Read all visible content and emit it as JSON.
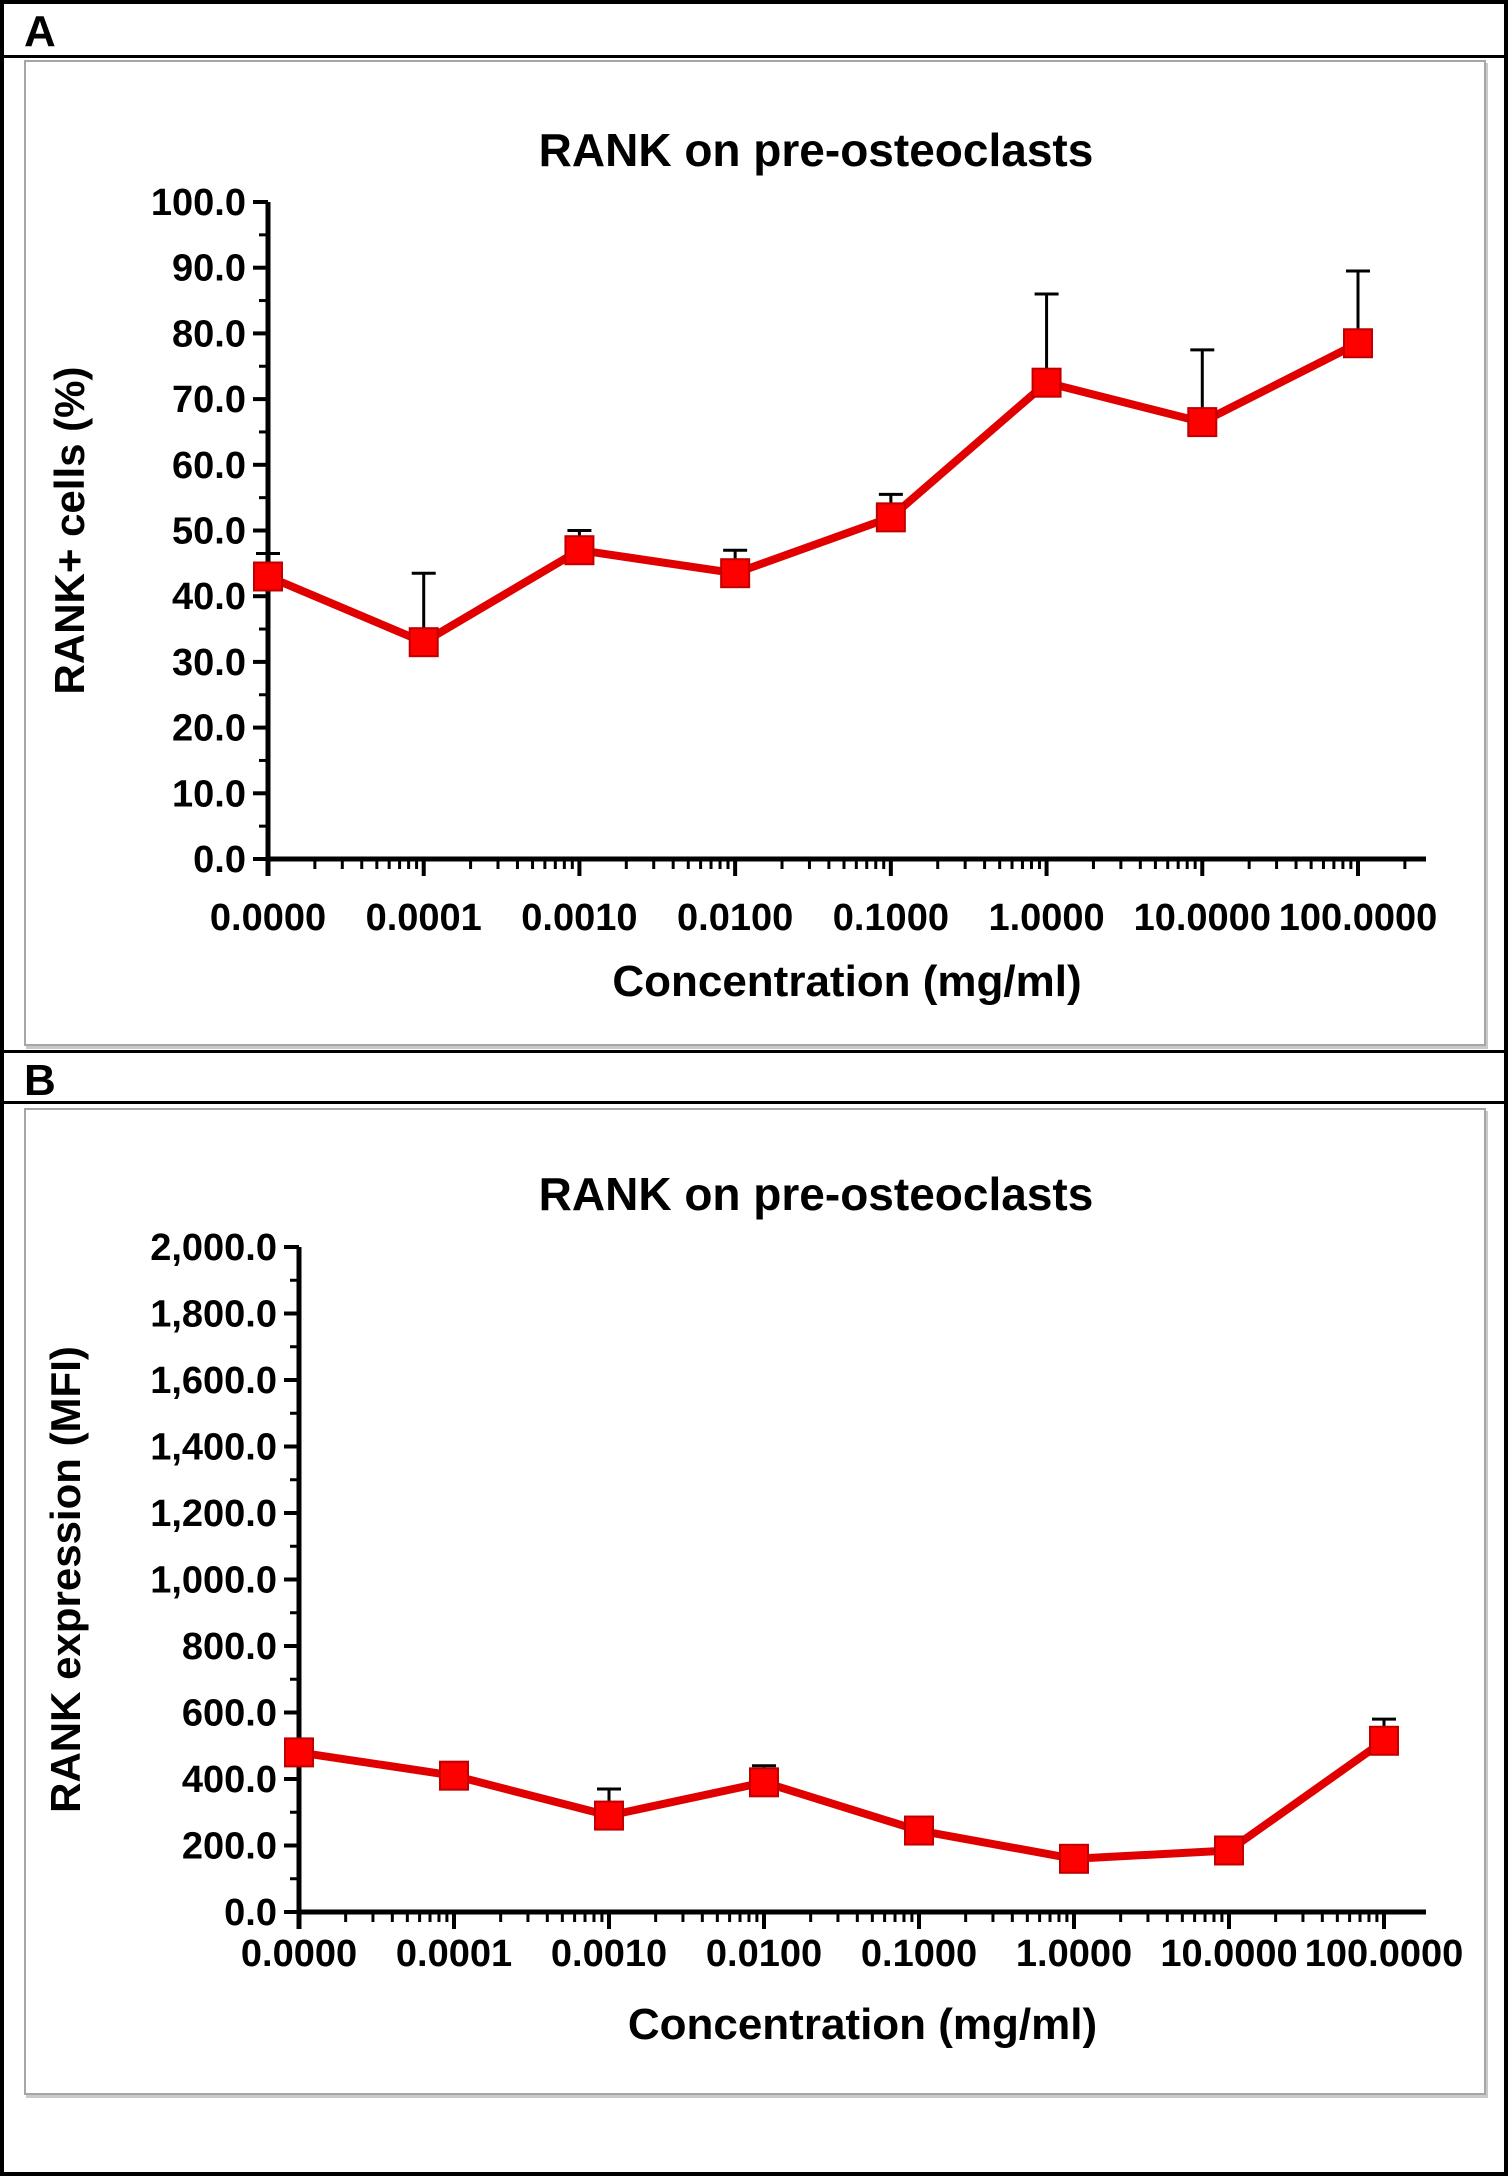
{
  "figure": {
    "panel_a_label": "A",
    "panel_b_label": "B"
  },
  "colors": {
    "line": "#e00000",
    "marker_fill": "#ff0000",
    "marker_edge": "#c00000",
    "error_bar": "#000000",
    "axis": "#000000",
    "text": "#000000",
    "panel_border": "#a6a6a6"
  },
  "chart_data": [
    {
      "id": "panelA",
      "type": "line",
      "title": "RANK on pre-osteoclasts",
      "xlabel": "Concentration (mg/ml)",
      "ylabel": "RANK+ cells (%)",
      "x_scale_note": "log-style category axis with decade minor ticks",
      "categories": [
        "0.0000",
        "0.0001",
        "0.0010",
        "0.0100",
        "0.1000",
        "1.0000",
        "10.0000",
        "100.0000"
      ],
      "series": [
        {
          "name": "RANK+ cells (%)",
          "values": [
            43.0,
            33.0,
            47.0,
            43.5,
            52.0,
            72.5,
            66.5,
            78.5
          ],
          "errors_up": [
            3.5,
            10.5,
            3.0,
            3.5,
            3.5,
            13.5,
            11.0,
            11.0
          ]
        }
      ],
      "ylim": [
        0,
        100
      ],
      "ytick_vals": [
        0,
        10,
        20,
        30,
        40,
        50,
        60,
        70,
        80,
        90,
        100
      ],
      "ytick_labels": [
        "0.0",
        "10.0",
        "20.0",
        "30.0",
        "40.0",
        "50.0",
        "60.0",
        "70.0",
        "80.0",
        "90.0",
        "100.0"
      ],
      "grid": false,
      "legend": "none"
    },
    {
      "id": "panelB",
      "type": "line",
      "title": "RANK on pre-osteoclasts",
      "xlabel": "Concentration (mg/ml)",
      "ylabel": "RANK expression (MFI)",
      "x_scale_note": "log-style category axis with decade minor ticks",
      "categories": [
        "0.0000",
        "0.0001",
        "0.0010",
        "0.0100",
        "0.1000",
        "1.0000",
        "10.0000",
        "100.0000"
      ],
      "series": [
        {
          "name": "RANK expression (MFI)",
          "values": [
            480,
            410,
            290,
            390,
            245,
            160,
            185,
            515
          ],
          "errors_up": [
            0,
            0,
            80,
            50,
            0,
            0,
            0,
            65
          ]
        }
      ],
      "ylim": [
        0,
        2000
      ],
      "ytick_vals": [
        0,
        200,
        400,
        600,
        800,
        1000,
        1200,
        1400,
        1600,
        1800,
        2000
      ],
      "ytick_labels": [
        "0.0",
        "200.0",
        "400.0",
        "600.0",
        "800.0",
        "1,000.0",
        "1,200.0",
        "1,400.0",
        "1,600.0",
        "1,800.0",
        "2,000.0"
      ],
      "grid": false,
      "legend": "none"
    }
  ]
}
